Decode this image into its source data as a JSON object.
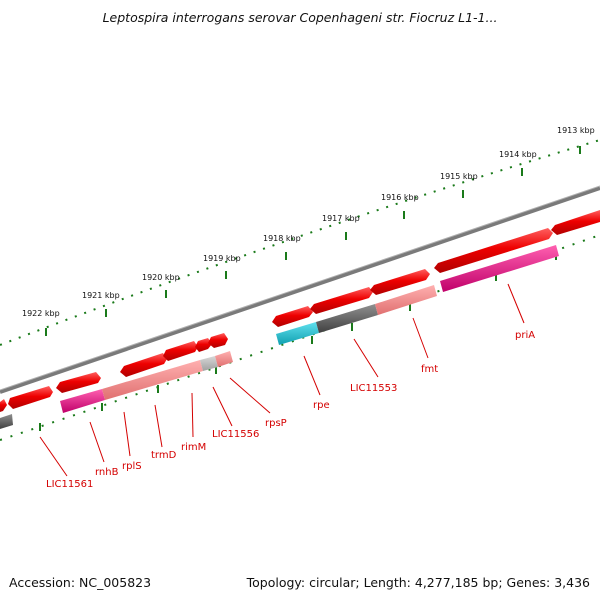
{
  "title": "Leptospira interrogans serovar Copenhageni str. Fiocruz L1-1...",
  "footer": {
    "accession": "Accession: NC_005823",
    "summary": "Topology: circular; Length: 4,277,185 bp; Genes: 3,436"
  },
  "axis": {
    "unit": "kbp",
    "ticks": [
      "1922 kbp",
      "1921 kbp",
      "1920 kbp",
      "1919 kbp",
      "1918 kbp",
      "1917 kbp",
      "1916 kbp",
      "1915 kbp",
      "1914 kbp",
      "1913 kbp"
    ]
  },
  "gene_labels": [
    "LIC11561",
    "rnhB",
    "rplS",
    "trmD",
    "rimM",
    "LIC11556",
    "rpsP",
    "rpe",
    "LIC11553",
    "fmt",
    "priA"
  ],
  "colors": {
    "backbone": "#7a7a7a",
    "gene_forward": "#ee0000",
    "gene_light": "#f08080",
    "gene_magenta": "#e8108a",
    "gene_teal": "#19b8c8",
    "gene_grey": "#606060",
    "tick_green": "#1a7a1a",
    "label_red": "#d40000"
  }
}
